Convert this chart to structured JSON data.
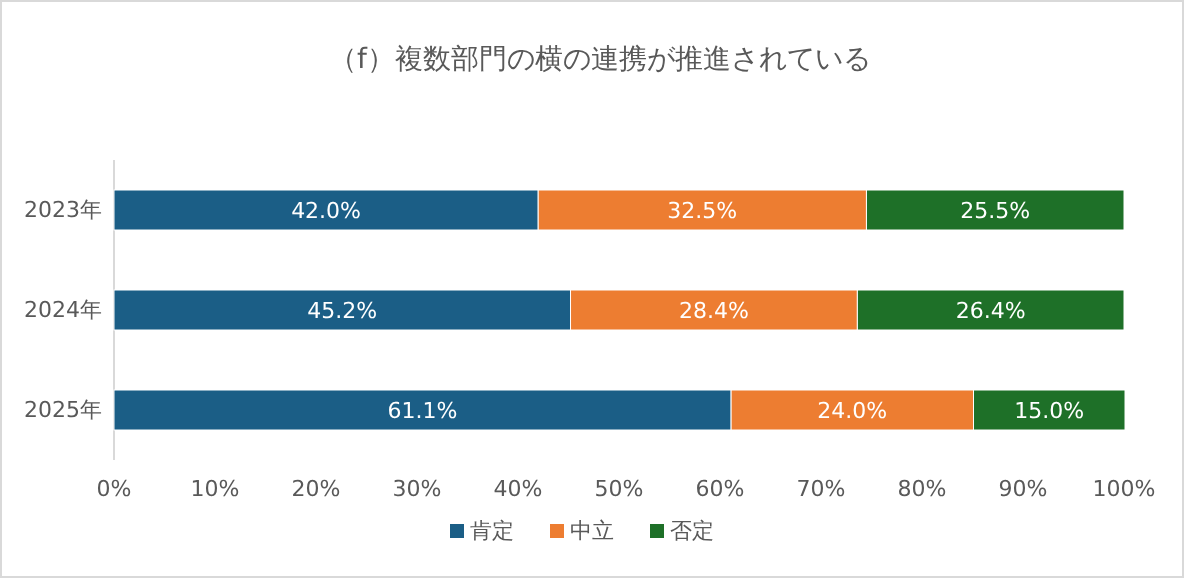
{
  "chart_data": {
    "type": "bar",
    "orientation": "horizontal",
    "stacked": true,
    "title": "（f）複数部門の横の連携が推進されている",
    "categories": [
      "2023年",
      "2024年",
      "2025年"
    ],
    "series": [
      {
        "name": "肯定",
        "color": "#1b5e86",
        "values": [
          42.0,
          45.2,
          61.1
        ],
        "value_labels": [
          "42.0%",
          "45.2%",
          "61.1%"
        ]
      },
      {
        "name": "中立",
        "color": "#ed7d31",
        "values": [
          32.5,
          28.4,
          24.0
        ],
        "value_labels": [
          "32.5%",
          "28.4%",
          "24.0%"
        ]
      },
      {
        "name": "否定",
        "color": "#1e7028",
        "values": [
          25.5,
          26.4,
          15.0
        ],
        "value_labels": [
          "25.5%",
          "26.4%",
          "15.0%"
        ]
      }
    ],
    "xlim": [
      0,
      100
    ],
    "xticks": [
      {
        "value": 0,
        "label": "0%"
      },
      {
        "value": 10,
        "label": "10%"
      },
      {
        "value": 20,
        "label": "20%"
      },
      {
        "value": 30,
        "label": "30%"
      },
      {
        "value": 40,
        "label": "40%"
      },
      {
        "value": 50,
        "label": "50%"
      },
      {
        "value": 60,
        "label": "60%"
      },
      {
        "value": 70,
        "label": "70%"
      },
      {
        "value": 80,
        "label": "80%"
      },
      {
        "value": 90,
        "label": "90%"
      },
      {
        "value": 100,
        "label": "100%"
      }
    ],
    "grid": false,
    "legend": "bottom"
  }
}
